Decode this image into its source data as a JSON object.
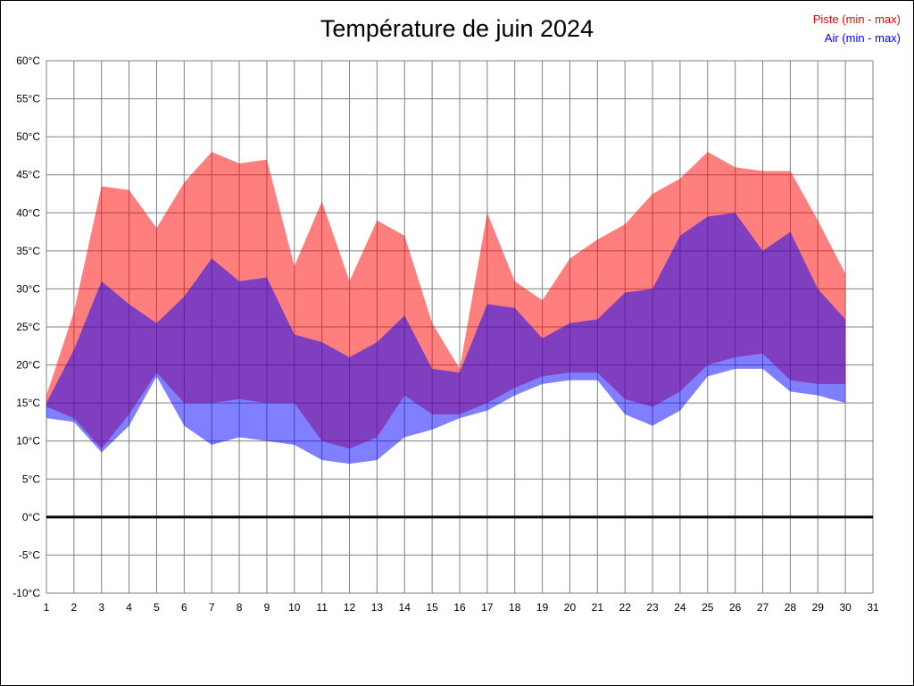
{
  "title": "Température de juin 2024",
  "legend": {
    "piste": {
      "label": "Piste (min - max)",
      "color": "#ff0000"
    },
    "air": {
      "label": "Air (min - max)",
      "color": "#0000ff"
    }
  },
  "chart_data": {
    "type": "area",
    "title": "Température de juin 2024",
    "xlabel": "",
    "ylabel": "",
    "ylim": [
      -10,
      60
    ],
    "grid": true,
    "zero_line": true,
    "x": [
      1,
      2,
      3,
      4,
      5,
      6,
      7,
      8,
      9,
      10,
      11,
      12,
      13,
      14,
      15,
      16,
      17,
      18,
      19,
      20,
      21,
      22,
      23,
      24,
      25,
      26,
      27,
      28,
      29,
      30
    ],
    "x_ticks": [
      "1",
      "2",
      "3",
      "4",
      "5",
      "6",
      "7",
      "8",
      "9",
      "10",
      "11",
      "12",
      "13",
      "14",
      "15",
      "16",
      "17",
      "18",
      "19",
      "20",
      "21",
      "22",
      "23",
      "24",
      "25",
      "26",
      "27",
      "28",
      "29",
      "30",
      "31"
    ],
    "y_ticks": [
      "60°C",
      "55°C",
      "50°C",
      "45°C",
      "40°C",
      "35°C",
      "30°C",
      "25°C",
      "20°C",
      "15°C",
      "10°C",
      "5°C",
      "0°C",
      "-5°C",
      "-10°C"
    ],
    "series": [
      {
        "id": "piste",
        "name": "Piste (min - max)",
        "color": "rgba(255,0,0,0.5)",
        "max": [
          16,
          27,
          43.5,
          43,
          38,
          44,
          48,
          46.5,
          47,
          33,
          41.5,
          31,
          39,
          37,
          25.5,
          19.5,
          40,
          31,
          28.5,
          34,
          36.5,
          38.5,
          42.5,
          44.5,
          48,
          46,
          45.5,
          45.5,
          39,
          32
        ],
        "min": [
          14.5,
          13,
          9,
          13.5,
          19,
          15,
          15,
          15.5,
          15,
          15,
          10,
          9,
          10.5,
          16,
          13.5,
          13.5,
          15,
          17,
          18.5,
          19,
          19,
          15.5,
          14.5,
          16.5,
          20,
          21,
          21.5,
          18,
          17.5,
          17.5
        ]
      },
      {
        "id": "air",
        "name": "Air (min - max)",
        "color": "rgba(0,0,255,0.5)",
        "max": [
          15,
          22,
          31,
          28,
          25.5,
          29,
          34,
          31,
          31.5,
          24,
          23,
          21,
          23,
          26.5,
          19.5,
          19,
          28,
          27.5,
          23.5,
          25.5,
          26,
          29.5,
          30,
          37,
          39.5,
          40,
          35,
          37.5,
          30,
          26
        ],
        "min": [
          13,
          12.5,
          8.5,
          12,
          18.5,
          12,
          9.5,
          10.5,
          10,
          9.5,
          7.5,
          7,
          7.5,
          10.5,
          11.5,
          13,
          14,
          16,
          17.5,
          18,
          18,
          13.5,
          12,
          14,
          18.5,
          19.5,
          19.5,
          16.5,
          16,
          15
        ]
      }
    ]
  }
}
